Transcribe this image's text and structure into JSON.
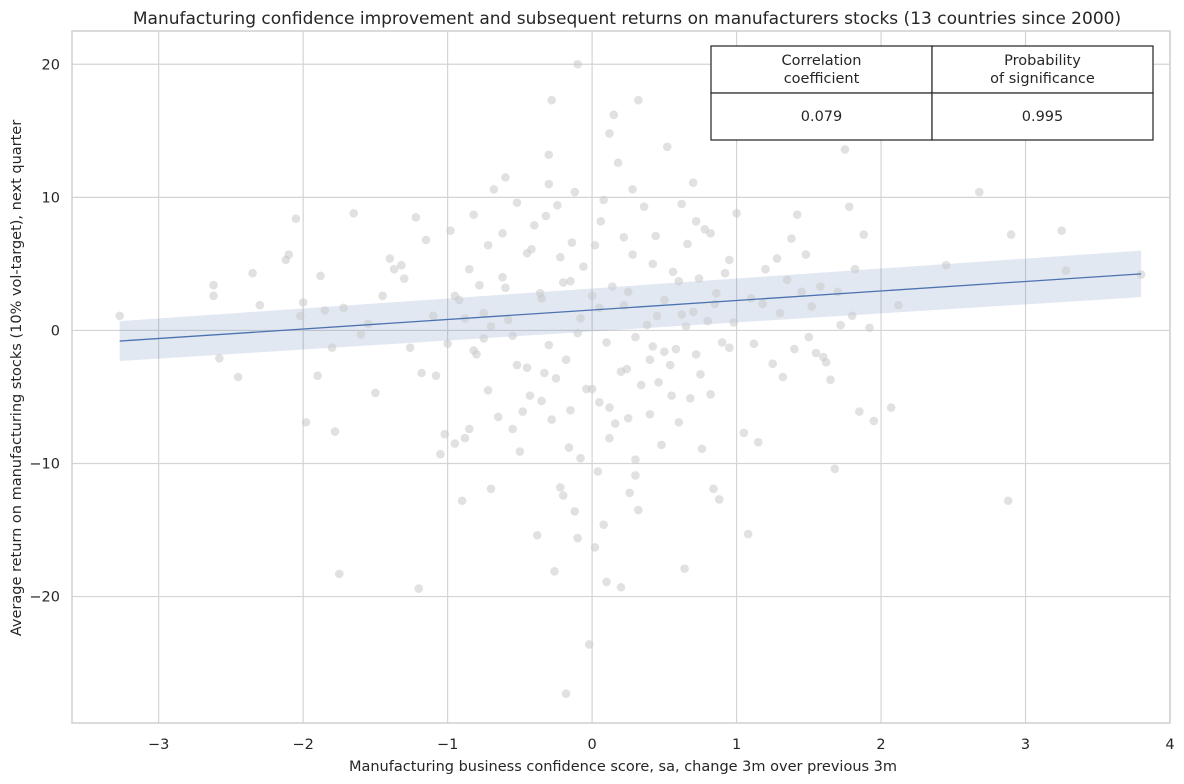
{
  "chart_data": {
    "type": "scatter",
    "title": "Manufacturing confidence improvement and subsequent returns on manufacturers stocks (13 countries since 2000)",
    "xlabel": "Manufacturing business confidence score, sa, change 3m over previous 3m",
    "ylabel": "Average return on manufacturing stocks (10% vol-target), next quarter",
    "xlim": [
      -3.6,
      4.0
    ],
    "ylim": [
      -29.5,
      22.5
    ],
    "xticks": [
      "−3",
      "−2",
      "−1",
      "0",
      "1",
      "2",
      "3",
      "4"
    ],
    "xtick_values": [
      -3,
      -2,
      -1,
      0,
      1,
      2,
      3,
      4
    ],
    "yticks": [
      "−20",
      "−10",
      "0",
      "10",
      "20"
    ],
    "ytick_values": [
      -20,
      -10,
      0,
      10,
      20
    ],
    "grid": true,
    "colors": {
      "points": "#c8c8c8",
      "regression": "#4c72b0"
    },
    "regression": {
      "x": [
        -3.27,
        3.8
      ],
      "y": [
        -0.8,
        4.25
      ],
      "ci_lower": [
        -2.3,
        2.5
      ],
      "ci_upper": [
        0.7,
        6.0
      ]
    },
    "points": [
      [
        -3.27,
        1.1
      ],
      [
        -2.62,
        3.4
      ],
      [
        -2.62,
        2.6
      ],
      [
        -2.58,
        -2.1
      ],
      [
        -2.45,
        -3.5
      ],
      [
        -2.35,
        4.3
      ],
      [
        -2.3,
        1.9
      ],
      [
        -2.12,
        5.3
      ],
      [
        -2.1,
        5.7
      ],
      [
        -2.05,
        8.4
      ],
      [
        -2.02,
        1.1
      ],
      [
        -2.0,
        2.1
      ],
      [
        -1.98,
        -6.9
      ],
      [
        -1.9,
        -3.4
      ],
      [
        -1.88,
        4.1
      ],
      [
        -1.85,
        1.5
      ],
      [
        -1.8,
        -1.3
      ],
      [
        -1.78,
        -7.6
      ],
      [
        -1.75,
        -18.3
      ],
      [
        -1.72,
        1.7
      ],
      [
        -1.65,
        8.8
      ],
      [
        -1.6,
        -0.3
      ],
      [
        -1.55,
        0.5
      ],
      [
        -1.5,
        -4.7
      ],
      [
        -1.45,
        2.6
      ],
      [
        -1.4,
        5.4
      ],
      [
        -1.37,
        4.6
      ],
      [
        -1.32,
        4.9
      ],
      [
        -1.3,
        3.9
      ],
      [
        -1.26,
        -1.3
      ],
      [
        -1.22,
        8.5
      ],
      [
        -1.2,
        -19.4
      ],
      [
        -1.18,
        -3.2
      ],
      [
        -1.15,
        6.8
      ],
      [
        -1.1,
        1.1
      ],
      [
        -1.08,
        -3.4
      ],
      [
        -1.05,
        -9.3
      ],
      [
        -1.02,
        -7.8
      ],
      [
        -1.0,
        -1.0
      ],
      [
        -0.98,
        7.5
      ],
      [
        -0.95,
        -8.5
      ],
      [
        -0.92,
        2.3
      ],
      [
        -0.9,
        -12.8
      ],
      [
        -0.88,
        -8.1
      ],
      [
        -0.85,
        -7.4
      ],
      [
        -0.82,
        -1.5
      ],
      [
        -0.8,
        -1.8
      ],
      [
        -0.78,
        3.4
      ],
      [
        -0.75,
        1.3
      ],
      [
        -0.72,
        -4.5
      ],
      [
        -0.7,
        -11.9
      ],
      [
        -0.68,
        10.6
      ],
      [
        -0.65,
        -6.5
      ],
      [
        -0.62,
        4.0
      ],
      [
        -0.6,
        11.5
      ],
      [
        -0.58,
        0.8
      ],
      [
        -0.55,
        -7.4
      ],
      [
        -0.52,
        -2.6
      ],
      [
        -0.5,
        -9.1
      ],
      [
        -0.48,
        -6.1
      ],
      [
        -0.45,
        5.8
      ],
      [
        -0.43,
        -4.9
      ],
      [
        -0.4,
        7.9
      ],
      [
        -0.38,
        -15.4
      ],
      [
        -0.36,
        2.8
      ],
      [
        -0.33,
        -3.2
      ],
      [
        -0.3,
        11.0
      ],
      [
        -0.28,
        -6.7
      ],
      [
        -0.26,
        -18.1
      ],
      [
        -0.24,
        9.4
      ],
      [
        -0.22,
        -11.8
      ],
      [
        -0.2,
        3.6
      ],
      [
        -0.18,
        -2.2
      ],
      [
        -0.16,
        -8.8
      ],
      [
        -0.14,
        6.6
      ],
      [
        -0.12,
        -13.6
      ],
      [
        -0.1,
        -15.6
      ],
      [
        -0.08,
        0.9
      ],
      [
        -0.06,
        4.8
      ],
      [
        -0.04,
        -4.4
      ],
      [
        -0.02,
        -23.6
      ],
      [
        0.0,
        2.6
      ],
      [
        0.02,
        -16.3
      ],
      [
        0.04,
        -10.6
      ],
      [
        0.06,
        8.2
      ],
      [
        0.08,
        -14.6
      ],
      [
        0.1,
        -18.9
      ],
      [
        0.12,
        -5.8
      ],
      [
        0.14,
        3.3
      ],
      [
        0.16,
        -7.0
      ],
      [
        0.18,
        12.6
      ],
      [
        0.2,
        -19.3
      ],
      [
        0.22,
        1.9
      ],
      [
        0.24,
        -2.9
      ],
      [
        0.26,
        -12.2
      ],
      [
        0.28,
        5.7
      ],
      [
        0.3,
        -9.7
      ],
      [
        0.32,
        -13.5
      ],
      [
        0.34,
        -4.1
      ],
      [
        0.36,
        9.3
      ],
      [
        0.38,
        0.4
      ],
      [
        0.4,
        -6.3
      ],
      [
        0.42,
        -1.2
      ],
      [
        0.44,
        7.1
      ],
      [
        0.46,
        -3.9
      ],
      [
        0.48,
        -8.6
      ],
      [
        0.5,
        2.3
      ],
      [
        0.52,
        13.8
      ],
      [
        0.54,
        -2.6
      ],
      [
        0.56,
        4.4
      ],
      [
        0.58,
        -1.4
      ],
      [
        0.6,
        -6.9
      ],
      [
        0.62,
        1.2
      ],
      [
        0.64,
        -17.9
      ],
      [
        0.66,
        6.5
      ],
      [
        0.68,
        -5.1
      ],
      [
        0.7,
        11.1
      ],
      [
        0.72,
        -1.8
      ],
      [
        0.74,
        3.9
      ],
      [
        0.76,
        -8.9
      ],
      [
        0.78,
        7.6
      ],
      [
        0.8,
        0.7
      ],
      [
        0.82,
        -4.8
      ],
      [
        0.84,
        -11.9
      ],
      [
        0.86,
        2.8
      ],
      [
        0.88,
        -12.7
      ],
      [
        0.9,
        -0.9
      ],
      [
        0.92,
        4.3
      ],
      [
        0.95,
        -1.3
      ],
      [
        0.98,
        0.6
      ],
      [
        1.0,
        8.8
      ],
      [
        1.05,
        -7.7
      ],
      [
        1.08,
        -15.3
      ],
      [
        1.1,
        2.4
      ],
      [
        1.12,
        -1.0
      ],
      [
        1.15,
        -8.4
      ],
      [
        1.18,
        2.0
      ],
      [
        1.2,
        4.6
      ],
      [
        1.25,
        -2.5
      ],
      [
        1.28,
        5.4
      ],
      [
        1.3,
        1.3
      ],
      [
        1.32,
        -3.5
      ],
      [
        1.35,
        3.8
      ],
      [
        1.38,
        6.9
      ],
      [
        1.4,
        -1.4
      ],
      [
        1.42,
        8.7
      ],
      [
        1.45,
        2.9
      ],
      [
        1.48,
        5.7
      ],
      [
        1.5,
        -0.5
      ],
      [
        1.52,
        1.8
      ],
      [
        1.55,
        -1.7
      ],
      [
        1.58,
        3.3
      ],
      [
        1.6,
        -2.0
      ],
      [
        1.62,
        -2.4
      ],
      [
        1.65,
        -3.7
      ],
      [
        1.68,
        -10.4
      ],
      [
        1.7,
        2.9
      ],
      [
        1.72,
        0.4
      ],
      [
        1.75,
        13.6
      ],
      [
        1.78,
        9.3
      ],
      [
        1.8,
        1.1
      ],
      [
        1.82,
        4.6
      ],
      [
        1.85,
        -6.1
      ],
      [
        1.88,
        7.2
      ],
      [
        1.92,
        0.2
      ],
      [
        1.95,
        -6.8
      ],
      [
        2.07,
        -5.8
      ],
      [
        2.12,
        1.9
      ],
      [
        2.45,
        4.9
      ],
      [
        2.68,
        10.4
      ],
      [
        2.88,
        -12.8
      ],
      [
        2.9,
        7.2
      ],
      [
        3.25,
        7.5
      ],
      [
        3.28,
        4.5
      ],
      [
        3.8,
        4.2
      ],
      [
        -0.52,
        9.6
      ],
      [
        -0.32,
        8.6
      ],
      [
        -0.12,
        10.4
      ],
      [
        0.08,
        9.8
      ],
      [
        0.28,
        10.6
      ],
      [
        -0.42,
        6.1
      ],
      [
        -0.22,
        5.5
      ],
      [
        0.02,
        6.4
      ],
      [
        0.22,
        7.0
      ],
      [
        0.42,
        5.0
      ],
      [
        -0.6,
        3.2
      ],
      [
        -0.35,
        2.4
      ],
      [
        -0.15,
        3.7
      ],
      [
        0.05,
        1.7
      ],
      [
        0.25,
        2.9
      ],
      [
        0.45,
        1.1
      ],
      [
        0.65,
        0.3
      ],
      [
        -0.55,
        -0.4
      ],
      [
        -0.3,
        -1.1
      ],
      [
        -0.1,
        -0.2
      ],
      [
        0.1,
        -0.9
      ],
      [
        0.3,
        -0.5
      ],
      [
        0.5,
        -1.6
      ],
      [
        -0.45,
        -2.8
      ],
      [
        -0.25,
        -3.6
      ],
      [
        0.0,
        -4.4
      ],
      [
        0.2,
        -3.1
      ],
      [
        0.4,
        -2.2
      ],
      [
        -0.35,
        -5.3
      ],
      [
        -0.15,
        -6.0
      ],
      [
        0.05,
        -5.4
      ],
      [
        0.25,
        -6.6
      ],
      [
        -0.08,
        -9.6
      ],
      [
        0.12,
        -8.1
      ],
      [
        -0.2,
        -12.4
      ],
      [
        0.3,
        -10.9
      ],
      [
        -0.28,
        17.3
      ],
      [
        -0.1,
        20.0
      ],
      [
        0.15,
        16.2
      ],
      [
        0.32,
        17.3
      ],
      [
        0.12,
        14.8
      ],
      [
        -0.3,
        13.2
      ],
      [
        -0.82,
        8.7
      ],
      [
        -0.72,
        6.4
      ],
      [
        -0.62,
        7.3
      ],
      [
        0.62,
        9.5
      ],
      [
        0.72,
        8.2
      ],
      [
        0.82,
        7.3
      ],
      [
        0.6,
        3.7
      ],
      [
        0.7,
        1.4
      ],
      [
        -0.18,
        -27.3
      ],
      [
        -0.7,
        0.3
      ],
      [
        -0.88,
        0.9
      ],
      [
        0.75,
        -3.3
      ],
      [
        0.55,
        -4.9
      ],
      [
        0.85,
        2.0
      ],
      [
        0.95,
        5.3
      ],
      [
        -0.95,
        2.6
      ],
      [
        -0.85,
        4.6
      ],
      [
        -0.75,
        -0.6
      ]
    ]
  }
}
